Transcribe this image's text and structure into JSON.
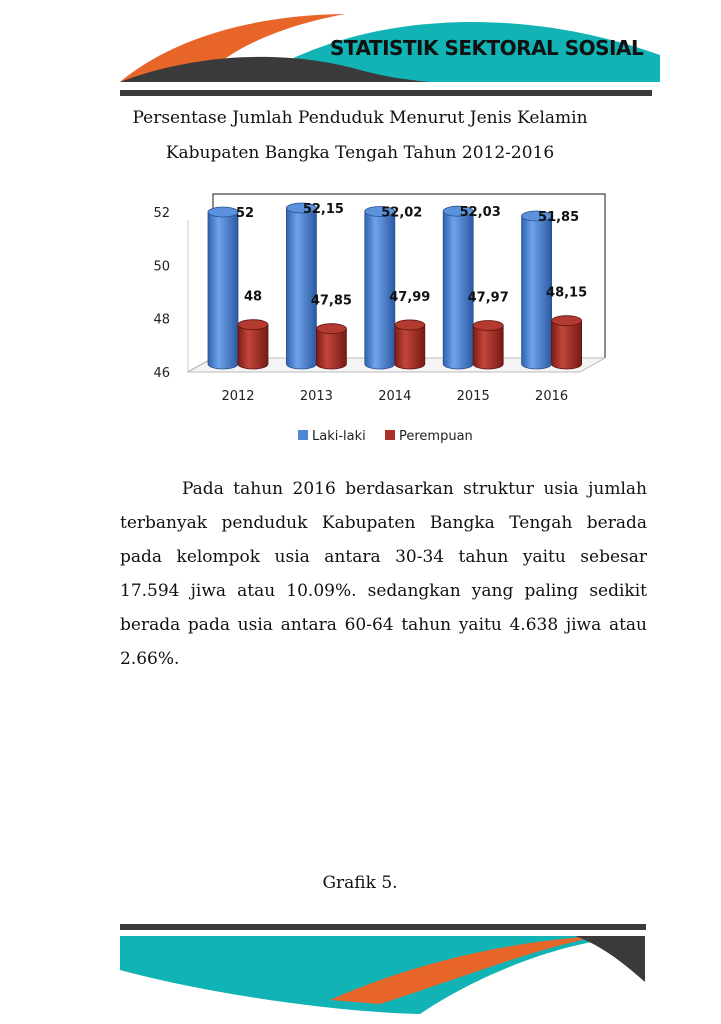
{
  "header": {
    "title": "STATISTIK SEKTORAL SOSIAL"
  },
  "colors": {
    "teal": "#12b3b5",
    "orange": "#e8652a",
    "dark": "#3a3a3a",
    "male": "#4f86d6",
    "female": "#a9312a"
  },
  "chart_title": {
    "line1": "Persentase Jumlah Penduduk Menurut Jenis Kelamin",
    "line2": "Kabupaten Bangka Tengah Tahun 2012-2016"
  },
  "chart_data": {
    "type": "bar",
    "categories": [
      "2012",
      "2013",
      "2014",
      "2015",
      "2016"
    ],
    "series": [
      {
        "name": "Laki-laki",
        "values": [
          52,
          52.15,
          52.02,
          52.03,
          51.85
        ],
        "labels": [
          "52",
          "52,15",
          "52,02",
          "52,03",
          "51,85"
        ]
      },
      {
        "name": "Perempuan",
        "values": [
          48,
          47.85,
          47.99,
          47.97,
          48.15
        ],
        "labels": [
          "48",
          "47,85",
          "47,99",
          "47,97",
          "48,15"
        ]
      }
    ],
    "y_ticks": [
      "52",
      "50",
      "48",
      "46"
    ],
    "ylim": [
      46,
      52
    ],
    "legend": "bottom"
  },
  "paragraph": "Pada tahun 2016 berdasarkan struktur usia jumlah terbanyak penduduk Kabupaten Bangka Tengah berada pada kelompok usia antara 30-34 tahun yaitu sebesar 17.594 jiwa atau 10.09%. sedangkan yang paling sedikit berada pada usia antara 60-64 tahun yaitu 4.638 jiwa atau 2.66%.",
  "caption": "Grafik 5."
}
